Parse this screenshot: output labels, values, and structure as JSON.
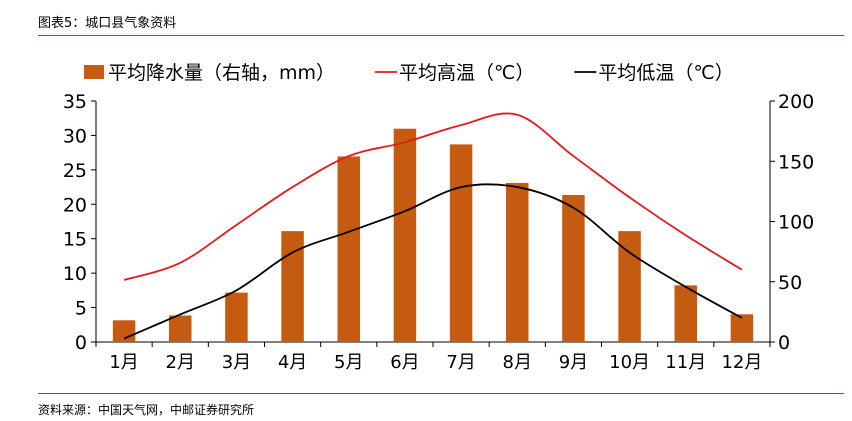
{
  "figure_title": "图表5：城口县气象资料",
  "source": "资料来源：中国天气网，中邮证券研究所",
  "chart_data": {
    "type": "bar+line",
    "title": "",
    "categories": [
      "1月",
      "2月",
      "3月",
      "4月",
      "5月",
      "6月",
      "7月",
      "8月",
      "9月",
      "10月",
      "11月",
      "12月"
    ],
    "left_axis": {
      "min": 0,
      "max": 35,
      "ticks": [
        0,
        5,
        10,
        15,
        20,
        25,
        30,
        35
      ]
    },
    "right_axis": {
      "min": 0,
      "max": 200,
      "ticks": [
        0,
        50,
        100,
        150,
        200
      ]
    },
    "legend_position": "top",
    "series": [
      {
        "name": "平均降水量（右轴，mm）",
        "type": "bar",
        "axis": "right",
        "color": "#c55a11",
        "values": [
          18,
          22,
          41,
          92,
          154,
          177,
          164,
          132,
          122,
          92,
          47,
          23
        ]
      },
      {
        "name": "平均高温（℃）",
        "type": "line",
        "axis": "left",
        "color": "#e31a1c",
        "values": [
          9,
          11.5,
          17,
          22.5,
          27,
          29,
          31.5,
          33,
          27,
          21,
          15.5,
          10.5
        ]
      },
      {
        "name": "平均低温（℃）",
        "type": "line",
        "axis": "left",
        "color": "#000000",
        "values": [
          0.5,
          4,
          7.5,
          13,
          16,
          19,
          22.5,
          22.5,
          19.5,
          13,
          8,
          3.5
        ]
      }
    ]
  }
}
